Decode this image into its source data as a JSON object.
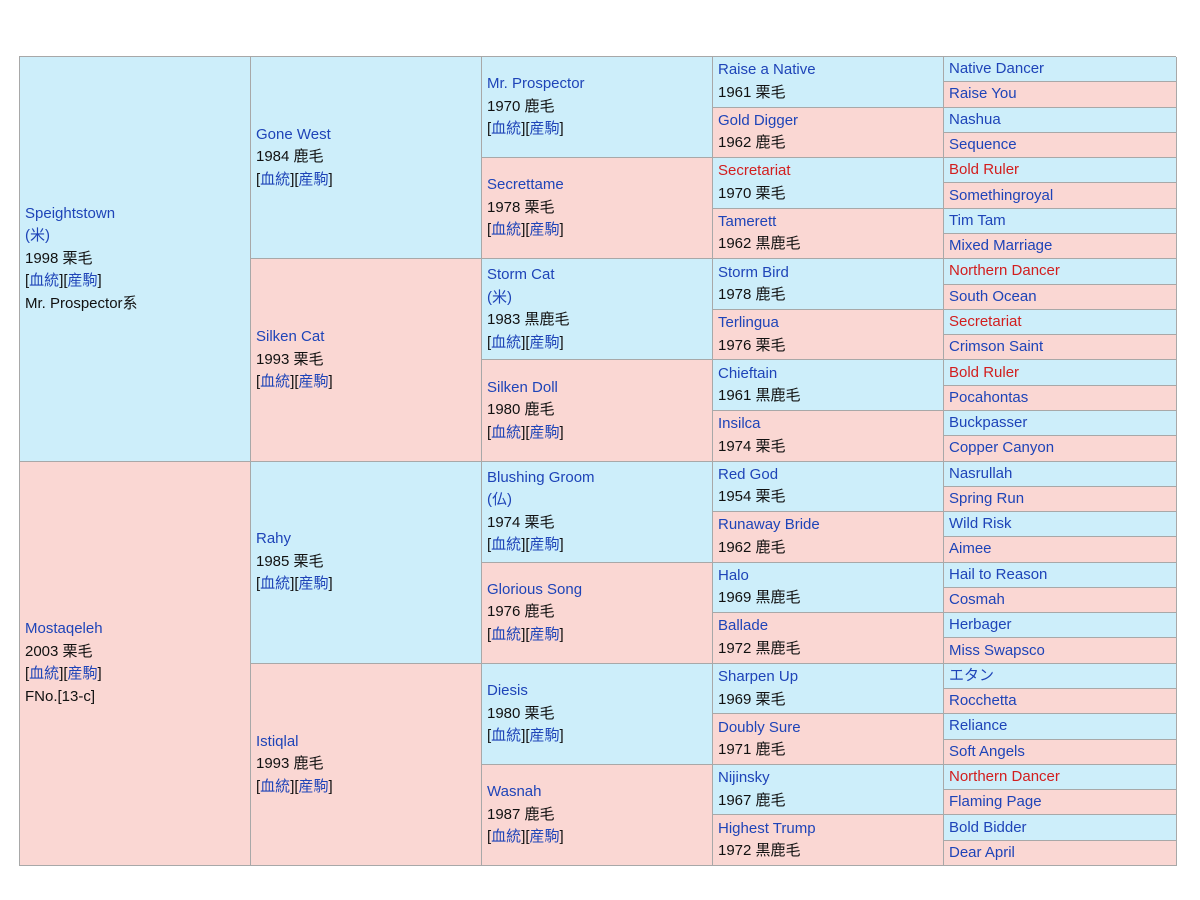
{
  "links": {
    "pedigree": "血統",
    "progeny": "産駒"
  },
  "colors": {
    "male_bg": "#cdeefa",
    "female_bg": "#fad7d3",
    "link": "#1e44b8",
    "highlight": "#d21e1e"
  },
  "gen1": [
    {
      "name": "Speightstown",
      "country": "(米)",
      "info": "1998 栗毛",
      "extra": "Mr. Prospector系"
    },
    {
      "name": "Mostaqeleh",
      "info": "2003 栗毛",
      "extra": "FNo.[13-c]"
    }
  ],
  "gen2": [
    {
      "name": "Gone West",
      "info": "1984 鹿毛"
    },
    {
      "name": "Silken Cat",
      "info": "1993 栗毛"
    },
    {
      "name": "Rahy",
      "info": "1985 栗毛"
    },
    {
      "name": "Istiqlal",
      "info": "1993 鹿毛"
    }
  ],
  "gen3": [
    {
      "name": "Mr. Prospector",
      "info": "1970 鹿毛"
    },
    {
      "name": "Secrettame",
      "info": "1978 栗毛"
    },
    {
      "name": "Storm Cat",
      "country": "(米)",
      "info": "1983 黒鹿毛"
    },
    {
      "name": "Silken Doll",
      "info": "1980 鹿毛"
    },
    {
      "name": "Blushing Groom",
      "country": "(仏)",
      "info": "1974 栗毛"
    },
    {
      "name": "Glorious Song",
      "info": "1976 鹿毛"
    },
    {
      "name": "Diesis",
      "info": "1980 栗毛"
    },
    {
      "name": "Wasnah",
      "info": "1987 鹿毛"
    }
  ],
  "gen4": [
    {
      "name": "Raise a Native",
      "info": "1961 栗毛"
    },
    {
      "name": "Gold Digger",
      "info": "1962 鹿毛"
    },
    {
      "name": "Secretariat",
      "info": "1970 栗毛"
    },
    {
      "name": "Tamerett",
      "info": "1962 黒鹿毛"
    },
    {
      "name": "Storm Bird",
      "info": "1978 鹿毛"
    },
    {
      "name": "Terlingua",
      "info": "1976 栗毛"
    },
    {
      "name": "Chieftain",
      "info": "1961 黒鹿毛"
    },
    {
      "name": "Insilca",
      "info": "1974 栗毛"
    },
    {
      "name": "Red God",
      "info": "1954 栗毛"
    },
    {
      "name": "Runaway Bride",
      "info": "1962 鹿毛"
    },
    {
      "name": "Halo",
      "info": "1969 黒鹿毛"
    },
    {
      "name": "Ballade",
      "info": "1972 黒鹿毛"
    },
    {
      "name": "Sharpen Up",
      "info": "1969 栗毛"
    },
    {
      "name": "Doubly Sure",
      "info": "1971 鹿毛"
    },
    {
      "name": "Nijinsky",
      "info": "1967 鹿毛"
    },
    {
      "name": "Highest Trump",
      "info": "1972 黒鹿毛"
    }
  ],
  "gen5": [
    "Native Dancer",
    "Raise You",
    "Nashua",
    "Sequence",
    "Bold Ruler",
    "Somethingroyal",
    "Tim Tam",
    "Mixed Marriage",
    "Northern Dancer",
    "South Ocean",
    "Secretariat",
    "Crimson Saint",
    "Bold Ruler",
    "Pocahontas",
    "Buckpasser",
    "Copper Canyon",
    "Nasrullah",
    "Spring Run",
    "Wild Risk",
    "Aimee",
    "Hail to Reason",
    "Cosmah",
    "Herbager",
    "Miss Swapsco",
    "エタン",
    "Rocchetta",
    "Reliance",
    "Soft Angels",
    "Northern Dancer",
    "Flaming Page",
    "Bold Bidder",
    "Dear April"
  ]
}
